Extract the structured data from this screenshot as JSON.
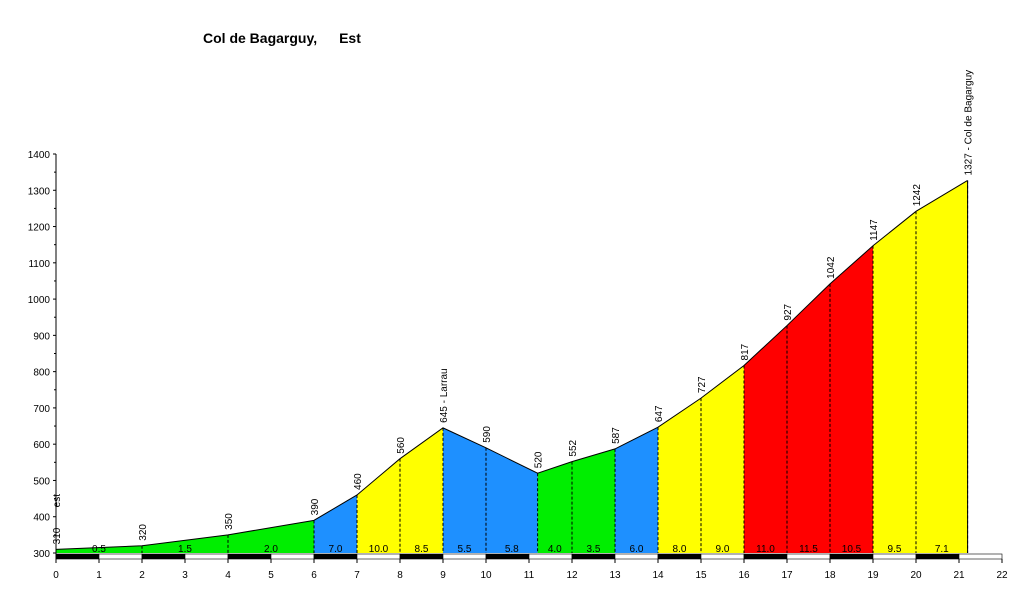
{
  "chart_data": {
    "type": "area",
    "title": "Col de Bagarguy,",
    "subtitle": "Est",
    "xlim": [
      0,
      22
    ],
    "ylim": [
      300,
      1400
    ],
    "x_ticks": [
      "0",
      "1",
      "2",
      "3",
      "4",
      "5",
      "6",
      "7",
      "8",
      "9",
      "10",
      "11",
      "12",
      "13",
      "14",
      "15",
      "16",
      "17",
      "18",
      "19",
      "20",
      "21",
      "22"
    ],
    "y_ticks": [
      "300",
      "400",
      "500",
      "600",
      "700",
      "800",
      "900",
      "1000",
      "1100",
      "1200",
      "1300",
      "1400"
    ],
    "profile": [
      {
        "km": 0,
        "alt": 310
      },
      {
        "km": 2,
        "alt": 320
      },
      {
        "km": 4,
        "alt": 350
      },
      {
        "km": 6,
        "alt": 390
      },
      {
        "km": 7,
        "alt": 460
      },
      {
        "km": 8,
        "alt": 560
      },
      {
        "km": 9,
        "alt": 645
      },
      {
        "km": 10,
        "alt": 590
      },
      {
        "km": 11.2,
        "alt": 520
      },
      {
        "km": 12,
        "alt": 552
      },
      {
        "km": 13,
        "alt": 587
      },
      {
        "km": 14,
        "alt": 647
      },
      {
        "km": 15,
        "alt": 727
      },
      {
        "km": 16,
        "alt": 817
      },
      {
        "km": 17,
        "alt": 927
      },
      {
        "km": 18,
        "alt": 1042
      },
      {
        "km": 19,
        "alt": 1147
      },
      {
        "km": 20,
        "alt": 1242
      },
      {
        "km": 21.2,
        "alt": 1327
      }
    ],
    "alt_labels": [
      {
        "km": 0,
        "alt": 310,
        "text": "310"
      },
      {
        "km": 0,
        "alt": 310,
        "text": "est"
      },
      {
        "km": 2,
        "alt": 320,
        "text": "320"
      },
      {
        "km": 4,
        "alt": 350,
        "text": "350"
      },
      {
        "km": 6,
        "alt": 390,
        "text": "390"
      },
      {
        "km": 7,
        "alt": 460,
        "text": "460"
      },
      {
        "km": 8,
        "alt": 560,
        "text": "560"
      },
      {
        "km": 9,
        "alt": 645,
        "text": "645 - Larrau"
      },
      {
        "km": 10,
        "alt": 590,
        "text": "590"
      },
      {
        "km": 11.2,
        "alt": 520,
        "text": "520"
      },
      {
        "km": 12,
        "alt": 552,
        "text": "552"
      },
      {
        "km": 13,
        "alt": 587,
        "text": "587"
      },
      {
        "km": 14,
        "alt": 647,
        "text": "647"
      },
      {
        "km": 15,
        "alt": 727,
        "text": "727"
      },
      {
        "km": 16,
        "alt": 817,
        "text": "817"
      },
      {
        "km": 17,
        "alt": 927,
        "text": "927"
      },
      {
        "km": 18,
        "alt": 1042,
        "text": "1042"
      },
      {
        "km": 19,
        "alt": 1147,
        "text": "1147"
      },
      {
        "km": 20,
        "alt": 1242,
        "text": "1242"
      },
      {
        "km": 21.2,
        "alt": 1327,
        "text": "1327 - Col de Bagarguy"
      }
    ],
    "segments": [
      {
        "from": 0,
        "to": 2,
        "gradient": "0.5",
        "color": "#00ee00"
      },
      {
        "from": 2,
        "to": 4,
        "gradient": "1.5",
        "color": "#00ee00"
      },
      {
        "from": 4,
        "to": 6,
        "gradient": "2.0",
        "color": "#00ee00"
      },
      {
        "from": 6,
        "to": 7,
        "gradient": "7.0",
        "color": "#1e90ff"
      },
      {
        "from": 7,
        "to": 8,
        "gradient": "10.0",
        "color": "#ffff00"
      },
      {
        "from": 8,
        "to": 9,
        "gradient": "8.5",
        "color": "#ffff00"
      },
      {
        "from": 9,
        "to": 10,
        "gradient": "5.5",
        "color": "#1e90ff"
      },
      {
        "from": 10,
        "to": 11.2,
        "gradient": "5.8",
        "color": "#1e90ff"
      },
      {
        "from": 11.2,
        "to": 12,
        "gradient": "4.0",
        "color": "#00ee00"
      },
      {
        "from": 12,
        "to": 13,
        "gradient": "3.5",
        "color": "#00ee00"
      },
      {
        "from": 13,
        "to": 14,
        "gradient": "6.0",
        "color": "#1e90ff"
      },
      {
        "from": 14,
        "to": 15,
        "gradient": "8.0",
        "color": "#ffff00"
      },
      {
        "from": 15,
        "to": 16,
        "gradient": "9.0",
        "color": "#ffff00"
      },
      {
        "from": 16,
        "to": 17,
        "gradient": "11.0",
        "color": "#ff0000"
      },
      {
        "from": 17,
        "to": 18,
        "gradient": "11.5",
        "color": "#ff0000"
      },
      {
        "from": 18,
        "to": 19,
        "gradient": "10.5",
        "color": "#ff0000"
      },
      {
        "from": 19,
        "to": 20,
        "gradient": "9.5",
        "color": "#ffff00"
      },
      {
        "from": 20,
        "to": 21.2,
        "gradient": "7.1",
        "color": "#ffff00"
      }
    ]
  }
}
